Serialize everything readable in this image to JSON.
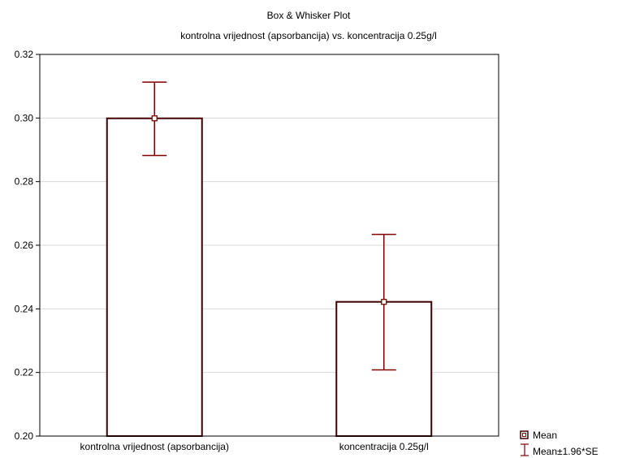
{
  "chart_data": {
    "type": "bar",
    "title": "Box & Whisker Plot",
    "subtitle": "kontrolna vrijednost (apsorbancija) vs. koncentracija 0.25g/l",
    "categories": [
      "kontrolna vrijednost (apsorbancija)",
      "koncentracija 0.25g/l"
    ],
    "series": [
      {
        "name": "Mean",
        "values": [
          0.2999,
          0.2422
        ],
        "whisker_low": [
          0.2882,
          0.2208
        ],
        "whisker_high": [
          0.3113,
          0.2634
        ]
      }
    ],
    "error_label": "Mean±1.96*SE",
    "ylim": [
      0.2,
      0.32
    ],
    "yticks": [
      "0.20",
      "0.22",
      "0.24",
      "0.26",
      "0.28",
      "0.30",
      "0.32"
    ],
    "grid": true,
    "legend_position": "bottom-right",
    "colors": {
      "mean": "#800000",
      "whisker": "#800000",
      "bar_edge": "#400000",
      "grid": "#d9d9d9"
    }
  }
}
